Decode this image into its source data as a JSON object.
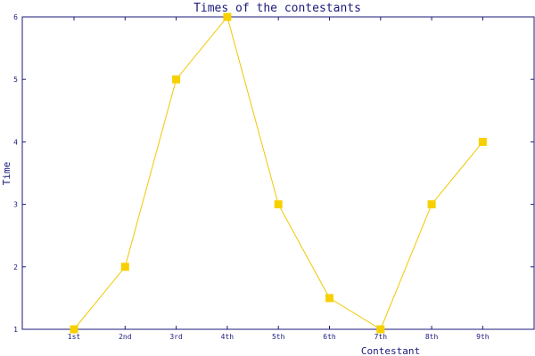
{
  "chart_data": {
    "type": "line",
    "title": "Times of the contestants",
    "xlabel": "Contestant",
    "ylabel": "Time",
    "categories": [
      "1st",
      "2nd",
      "3rd",
      "4th",
      "5th",
      "6th",
      "7th",
      "8th",
      "9th"
    ],
    "series": [
      {
        "values": [
          1,
          2,
          5,
          6,
          3,
          1.5,
          1,
          3,
          4
        ]
      }
    ],
    "ylim": [
      1,
      6
    ],
    "y_ticks": [
      1,
      2,
      3,
      4,
      5,
      6
    ],
    "grid": false,
    "legend": "none",
    "marker": "square",
    "colors": {
      "series": "#f0c800",
      "marker": "#f7d000",
      "axis": "#1a1a7a",
      "text": "#1a1a7a",
      "background": "#ffffff"
    }
  }
}
